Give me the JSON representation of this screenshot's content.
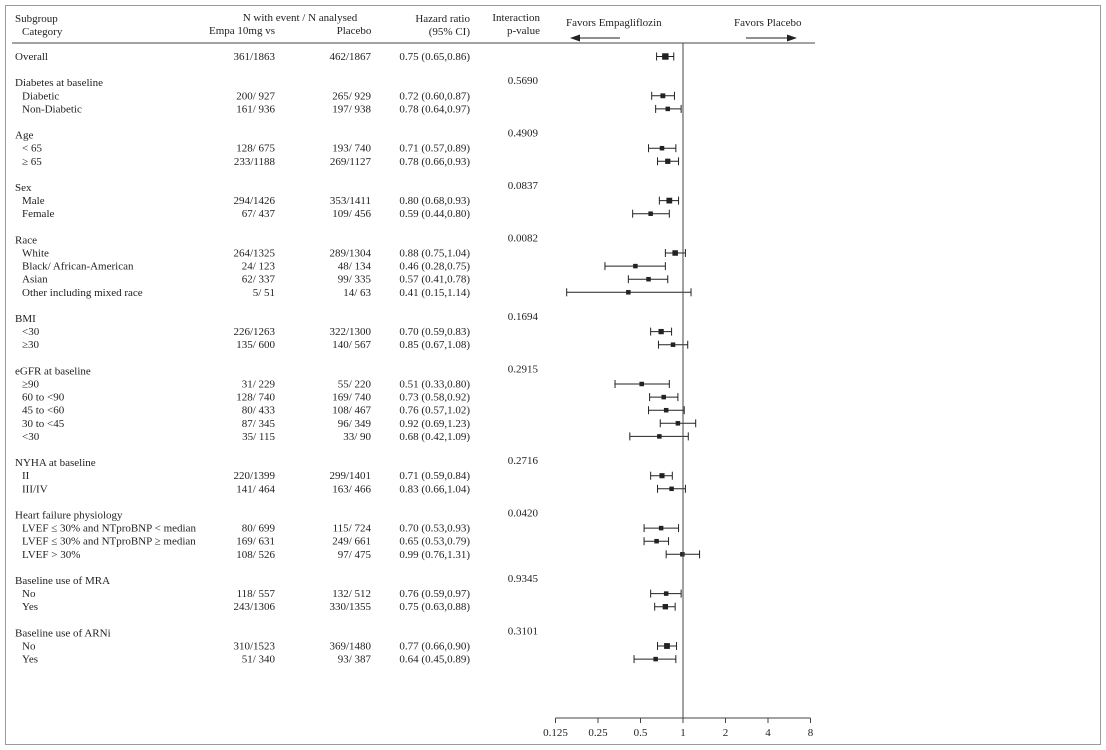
{
  "header": {
    "subgroup_line1": "Subgroup",
    "subgroup_line2": "Category",
    "n_title": "N with event / N analysed",
    "empa_col": "Empa 10mg vs",
    "placebo_col": "Placebo",
    "hr_line1": "Hazard ratio",
    "hr_line2": "(95% CI)",
    "int_line1": "Interaction",
    "int_line2": "p-value",
    "favors_left": "Favors Empagliflozin",
    "favors_right": "Favors Placebo"
  },
  "chart_data": {
    "type": "forest",
    "title": "",
    "xlabel": "",
    "x_scale": "log2",
    "xlim": [
      0.125,
      8
    ],
    "reference_line": 1,
    "x_ticks": [
      0.125,
      0.25,
      0.5,
      1,
      2,
      4,
      8
    ],
    "x_tick_labels": [
      "0.125",
      "0.25",
      "0.5",
      "1",
      "2",
      "4",
      "8"
    ],
    "groups": [
      {
        "label": "Overall",
        "is_row": true,
        "empa": "361/1863",
        "placebo": "462/1867",
        "hr_text": "0.75 (0.65,0.86)",
        "hr": 0.75,
        "lo": 0.65,
        "hi": 0.86,
        "p": "",
        "items": []
      },
      {
        "label": "Diabetes at baseline",
        "p": "0.5690",
        "items": [
          {
            "label": "Diabetic",
            "empa": "200/ 927",
            "placebo": "265/ 929",
            "hr_text": "0.72 (0.60,0.87)",
            "hr": 0.72,
            "lo": 0.6,
            "hi": 0.87
          },
          {
            "label": "Non-Diabetic",
            "empa": "161/ 936",
            "placebo": "197/ 938",
            "hr_text": "0.78 (0.64,0.97)",
            "hr": 0.78,
            "lo": 0.64,
            "hi": 0.97
          }
        ]
      },
      {
        "label": "Age",
        "p": "0.4909",
        "items": [
          {
            "label": "< 65",
            "empa": "128/ 675",
            "placebo": "193/ 740",
            "hr_text": "0.71 (0.57,0.89)",
            "hr": 0.71,
            "lo": 0.57,
            "hi": 0.89
          },
          {
            "label": "≥ 65",
            "empa": "233/1188",
            "placebo": "269/1127",
            "hr_text": "0.78 (0.66,0.93)",
            "hr": 0.78,
            "lo": 0.66,
            "hi": 0.93
          }
        ]
      },
      {
        "label": "Sex",
        "p": "0.0837",
        "items": [
          {
            "label": "Male",
            "empa": "294/1426",
            "placebo": "353/1411",
            "hr_text": "0.80 (0.68,0.93)",
            "hr": 0.8,
            "lo": 0.68,
            "hi": 0.93
          },
          {
            "label": "Female",
            "empa": "67/ 437",
            "placebo": "109/ 456",
            "hr_text": "0.59 (0.44,0.80)",
            "hr": 0.59,
            "lo": 0.44,
            "hi": 0.8
          }
        ]
      },
      {
        "label": "Race",
        "p": "0.0082",
        "items": [
          {
            "label": "White",
            "empa": "264/1325",
            "placebo": "289/1304",
            "hr_text": "0.88 (0.75,1.04)",
            "hr": 0.88,
            "lo": 0.75,
            "hi": 1.04
          },
          {
            "label": "Black/ African-American",
            "empa": "24/ 123",
            "placebo": "48/ 134",
            "hr_text": "0.46 (0.28,0.75)",
            "hr": 0.46,
            "lo": 0.28,
            "hi": 0.75
          },
          {
            "label": "Asian",
            "empa": "62/ 337",
            "placebo": "99/ 335",
            "hr_text": "0.57 (0.41,0.78)",
            "hr": 0.57,
            "lo": 0.41,
            "hi": 0.78
          },
          {
            "label": "Other including mixed race",
            "empa": "5/ 51",
            "placebo": "14/ 63",
            "hr_text": "0.41 (0.15,1.14)",
            "hr": 0.41,
            "lo": 0.15,
            "hi": 1.14
          }
        ]
      },
      {
        "label": "BMI",
        "p": "0.1694",
        "items": [
          {
            "label": "<30",
            "empa": "226/1263",
            "placebo": "322/1300",
            "hr_text": "0.70 (0.59,0.83)",
            "hr": 0.7,
            "lo": 0.59,
            "hi": 0.83
          },
          {
            "label": "≥30",
            "empa": "135/ 600",
            "placebo": "140/ 567",
            "hr_text": "0.85 (0.67,1.08)",
            "hr": 0.85,
            "lo": 0.67,
            "hi": 1.08
          }
        ]
      },
      {
        "label": "eGFR at baseline",
        "p": "0.2915",
        "items": [
          {
            "label": "≥90",
            "empa": "31/ 229",
            "placebo": "55/ 220",
            "hr_text": "0.51 (0.33,0.80)",
            "hr": 0.51,
            "lo": 0.33,
            "hi": 0.8
          },
          {
            "label": "60 to <90",
            "empa": "128/ 740",
            "placebo": "169/ 740",
            "hr_text": "0.73 (0.58,0.92)",
            "hr": 0.73,
            "lo": 0.58,
            "hi": 0.92
          },
          {
            "label": "45 to <60",
            "empa": "80/ 433",
            "placebo": "108/ 467",
            "hr_text": "0.76 (0.57,1.02)",
            "hr": 0.76,
            "lo": 0.57,
            "hi": 1.02
          },
          {
            "label": "30 to <45",
            "empa": "87/ 345",
            "placebo": "96/ 349",
            "hr_text": "0.92 (0.69,1.23)",
            "hr": 0.92,
            "lo": 0.69,
            "hi": 1.23
          },
          {
            "label": "<30",
            "empa": "35/ 115",
            "placebo": "33/ 90",
            "hr_text": "0.68 (0.42,1.09)",
            "hr": 0.68,
            "lo": 0.42,
            "hi": 1.09
          }
        ]
      },
      {
        "label": "NYHA at baseline",
        "p": "0.2716",
        "items": [
          {
            "label": "II",
            "empa": "220/1399",
            "placebo": "299/1401",
            "hr_text": "0.71 (0.59,0.84)",
            "hr": 0.71,
            "lo": 0.59,
            "hi": 0.84
          },
          {
            "label": "III/IV",
            "empa": "141/ 464",
            "placebo": "163/ 466",
            "hr_text": "0.83 (0.66,1.04)",
            "hr": 0.83,
            "lo": 0.66,
            "hi": 1.04
          }
        ]
      },
      {
        "label": "Heart failure physiology",
        "p": "0.0420",
        "items": [
          {
            "label": "LVEF ≤ 30% and NTproBNP < median",
            "empa": "80/ 699",
            "placebo": "115/ 724",
            "hr_text": "0.70 (0.53,0.93)",
            "hr": 0.7,
            "lo": 0.53,
            "hi": 0.93
          },
          {
            "label": "LVEF ≤ 30% and NTproBNP ≥ median",
            "empa": "169/ 631",
            "placebo": "249/ 661",
            "hr_text": "0.65 (0.53,0.79)",
            "hr": 0.65,
            "lo": 0.53,
            "hi": 0.79
          },
          {
            "label": "LVEF > 30%",
            "empa": "108/ 526",
            "placebo": "97/ 475",
            "hr_text": "0.99 (0.76,1.31)",
            "hr": 0.99,
            "lo": 0.76,
            "hi": 1.31
          }
        ]
      },
      {
        "label": "Baseline use of MRA",
        "p": "0.9345",
        "items": [
          {
            "label": "No",
            "empa": "118/ 557",
            "placebo": "132/ 512",
            "hr_text": "0.76 (0.59,0.97)",
            "hr": 0.76,
            "lo": 0.59,
            "hi": 0.97
          },
          {
            "label": "Yes",
            "empa": "243/1306",
            "placebo": "330/1355",
            "hr_text": "0.75 (0.63,0.88)",
            "hr": 0.75,
            "lo": 0.63,
            "hi": 0.88
          }
        ]
      },
      {
        "label": "Baseline use of ARNi",
        "p": "0.3101",
        "items": [
          {
            "label": "No",
            "empa": "310/1523",
            "placebo": "369/1480",
            "hr_text": "0.77 (0.66,0.90)",
            "hr": 0.77,
            "lo": 0.66,
            "hi": 0.9
          },
          {
            "label": "Yes",
            "empa": "51/ 340",
            "placebo": "93/ 387",
            "hr_text": "0.64 (0.45,0.89)",
            "hr": 0.64,
            "lo": 0.45,
            "hi": 0.89
          }
        ]
      }
    ]
  }
}
